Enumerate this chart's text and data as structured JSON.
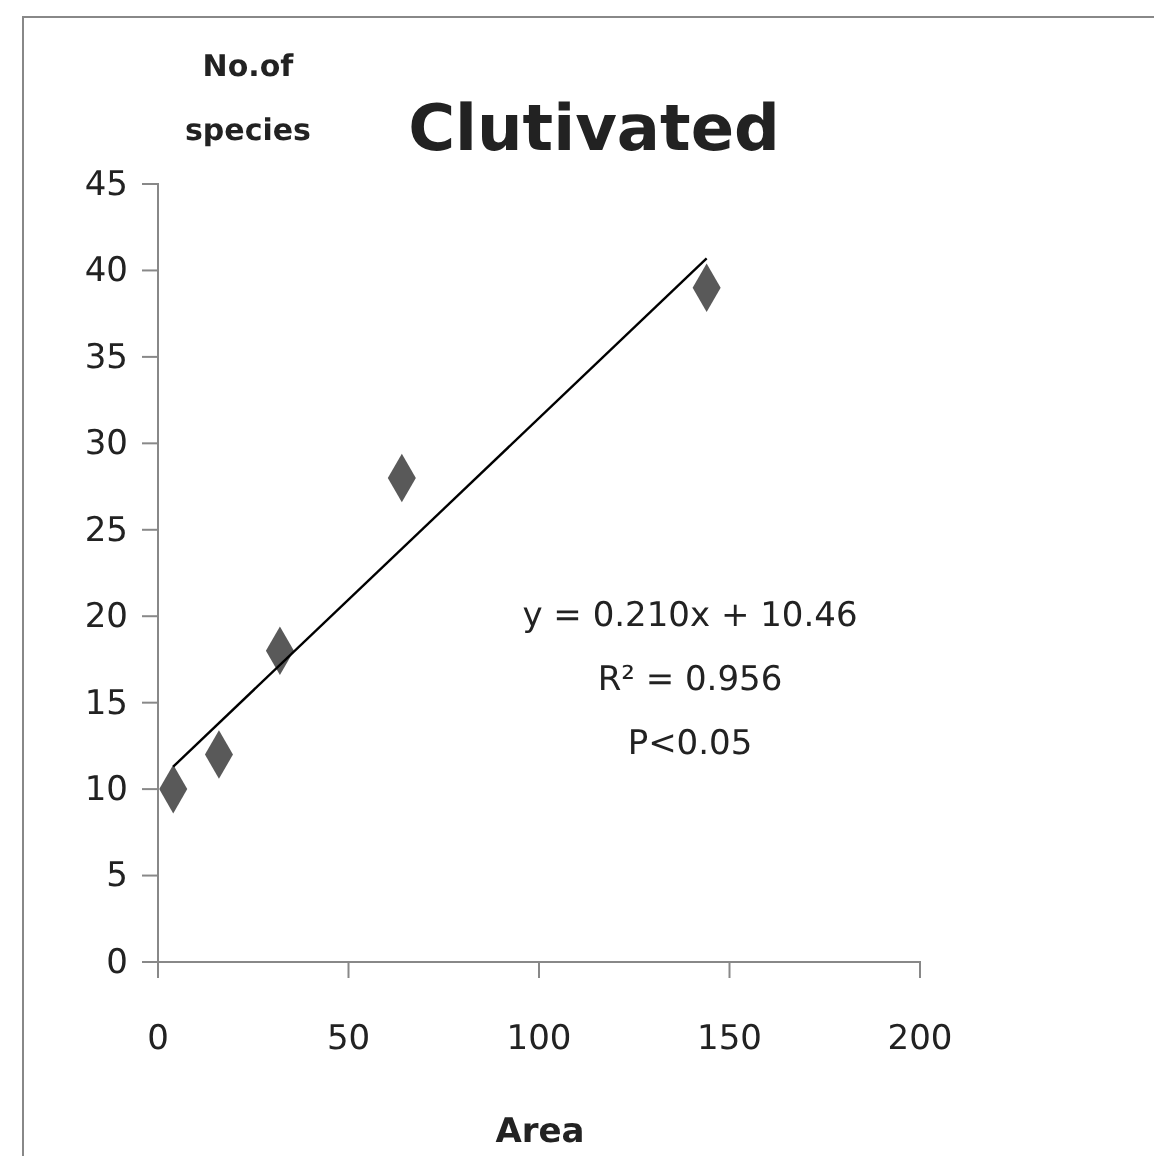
{
  "chart_data": {
    "type": "scatter",
    "title": "Clutivated",
    "xlabel": "Area",
    "ylabel": "No.of species",
    "x": [
      4,
      16,
      32,
      64,
      144
    ],
    "series": [
      {
        "color": "#595959",
        "marker": "diamond",
        "values": [
          10,
          12,
          18,
          28,
          39
        ]
      },
      {
        "type": "line",
        "color": "#000000",
        "x": [
          4,
          144
        ],
        "values": [
          11.3,
          40.7
        ],
        "marker": "none"
      }
    ],
    "annotations": [
      "y = 0.210x + 10.46",
      "R² = 0.956",
      "P<0.05"
    ],
    "xlim": [
      0,
      200
    ],
    "xticks": [
      0,
      50,
      100,
      150,
      200
    ],
    "ylim": [
      0,
      45
    ],
    "yticks": [
      0,
      5,
      10,
      15,
      20,
      25,
      30,
      35,
      40,
      45
    ],
    "grid": false
  }
}
